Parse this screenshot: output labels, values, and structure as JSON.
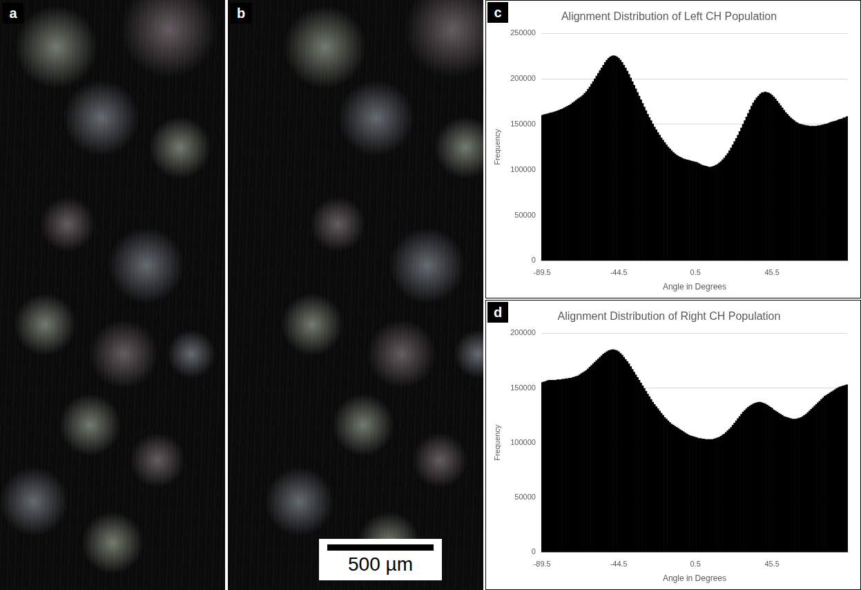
{
  "images": [
    {
      "panel": "a"
    },
    {
      "panel": "b",
      "scale_bar": "500 µm"
    }
  ],
  "chart_data": [
    {
      "type": "bar",
      "panel": "c",
      "title": "Alignment Distribution of Left CH Population",
      "x_label": "Angle in Degrees",
      "y_label": "Frequency",
      "color": "#000000",
      "grid": true,
      "ylim": [
        0,
        250000
      ],
      "yticks": [
        0,
        50000,
        100000,
        150000,
        200000,
        250000
      ],
      "categories": [
        "-89.5",
        null,
        null,
        null,
        null,
        null,
        null,
        null,
        null,
        null,
        null,
        null,
        null,
        null,
        null,
        null,
        null,
        null,
        null,
        null,
        null,
        null,
        null,
        null,
        null,
        null,
        null,
        null,
        null,
        null,
        null,
        null,
        null,
        null,
        null,
        null,
        null,
        null,
        null,
        null,
        null,
        null,
        null,
        null,
        null,
        "-44.5",
        null,
        null,
        null,
        null,
        null,
        null,
        null,
        null,
        null,
        null,
        null,
        null,
        null,
        null,
        null,
        null,
        null,
        null,
        null,
        null,
        null,
        null,
        null,
        null,
        null,
        null,
        null,
        null,
        null,
        null,
        null,
        null,
        null,
        null,
        null,
        null,
        null,
        null,
        null,
        null,
        null,
        null,
        null,
        null,
        "0.5",
        null,
        null,
        null,
        null,
        null,
        null,
        null,
        null,
        null,
        null,
        null,
        null,
        null,
        null,
        null,
        null,
        null,
        null,
        null,
        null,
        null,
        null,
        null,
        null,
        null,
        null,
        null,
        null,
        null,
        null,
        null,
        null,
        null,
        null,
        null,
        null,
        null,
        null,
        null,
        null,
        null,
        null,
        null,
        null,
        "45.5",
        null,
        null,
        null,
        null,
        null,
        null,
        null,
        null,
        null,
        null,
        null,
        null,
        null,
        null,
        null,
        null,
        null,
        null,
        null,
        null,
        null,
        null,
        null,
        null,
        null,
        null,
        null,
        null,
        null,
        null,
        null,
        null,
        null,
        null,
        null,
        null,
        null,
        null,
        null,
        null,
        null,
        null,
        null,
        null
      ],
      "values": [
        160000,
        160500,
        161000,
        161500,
        162000,
        162500,
        163000,
        163500,
        164000,
        164800,
        165500,
        166300,
        167000,
        168000,
        169000,
        170000,
        171000,
        172000,
        173500,
        175000,
        176500,
        178000,
        179000,
        180500,
        182000,
        184000,
        186000,
        188500,
        191000,
        194000,
        197000,
        200000,
        203000,
        206000,
        209000,
        212000,
        215000,
        218000,
        220500,
        222500,
        224000,
        225000,
        225500,
        225000,
        224000,
        222500,
        220500,
        218000,
        215000,
        212000,
        208500,
        205000,
        201000,
        197000,
        193000,
        189000,
        185000,
        181000,
        177000,
        173000,
        169000,
        165000,
        161000,
        157500,
        154000,
        150500,
        147000,
        144000,
        141000,
        138000,
        135000,
        132500,
        130000,
        127500,
        125000,
        123000,
        121000,
        119000,
        117500,
        116000,
        115000,
        114000,
        113000,
        112000,
        111500,
        111000,
        110500,
        110000,
        109500,
        109000,
        108500,
        108000,
        107000,
        106000,
        105000,
        104500,
        104000,
        103500,
        103000,
        103000,
        103500,
        104000,
        105000,
        106000,
        107500,
        109000,
        111000,
        113000,
        115500,
        118000,
        121000,
        124000,
        127500,
        131000,
        134500,
        138000,
        142000,
        146000,
        150000,
        154000,
        158000,
        162000,
        166000,
        170000,
        173500,
        176500,
        179000,
        181000,
        183000,
        184500,
        185000,
        185500,
        185000,
        184500,
        183500,
        182000,
        180000,
        178000,
        175500,
        173000,
        170500,
        168000,
        165500,
        163000,
        161000,
        159000,
        157000,
        155500,
        154000,
        152500,
        151500,
        150500,
        150000,
        149500,
        149000,
        148500,
        148500,
        148000,
        148000,
        148000,
        148000,
        148000,
        148500,
        148500,
        149000,
        149500,
        150000,
        150500,
        151000,
        152000,
        152500,
        153000,
        153500,
        154000,
        155000,
        155500,
        156000,
        157000,
        157500,
        158500
      ]
    },
    {
      "type": "bar",
      "panel": "d",
      "title": "Alignment Distribution of Right CH Population",
      "x_label": "Angle in Degrees",
      "y_label": "Frequency",
      "color": "#000000",
      "grid": true,
      "ylim": [
        0,
        200000
      ],
      "yticks": [
        0,
        50000,
        100000,
        150000,
        200000
      ],
      "categories": [
        "-89.5",
        null,
        null,
        null,
        null,
        null,
        null,
        null,
        null,
        null,
        null,
        null,
        null,
        null,
        null,
        null,
        null,
        null,
        null,
        null,
        null,
        null,
        null,
        null,
        null,
        null,
        null,
        null,
        null,
        null,
        null,
        null,
        null,
        null,
        null,
        null,
        null,
        null,
        null,
        null,
        null,
        null,
        null,
        null,
        null,
        "-44.5",
        null,
        null,
        null,
        null,
        null,
        null,
        null,
        null,
        null,
        null,
        null,
        null,
        null,
        null,
        null,
        null,
        null,
        null,
        null,
        null,
        null,
        null,
        null,
        null,
        null,
        null,
        null,
        null,
        null,
        null,
        null,
        null,
        null,
        null,
        null,
        null,
        null,
        null,
        null,
        null,
        null,
        null,
        null,
        null,
        "0.5",
        null,
        null,
        null,
        null,
        null,
        null,
        null,
        null,
        null,
        null,
        null,
        null,
        null,
        null,
        null,
        null,
        null,
        null,
        null,
        null,
        null,
        null,
        null,
        null,
        null,
        null,
        null,
        null,
        null,
        null,
        null,
        null,
        null,
        null,
        null,
        null,
        null,
        null,
        null,
        null,
        null,
        null,
        null,
        null,
        "45.5",
        null,
        null,
        null,
        null,
        null,
        null,
        null,
        null,
        null,
        null,
        null,
        null,
        null,
        null,
        null,
        null,
        null,
        null,
        null,
        null,
        null,
        null,
        null,
        null,
        null,
        null,
        null,
        null,
        null,
        null,
        null,
        null,
        null,
        null,
        null,
        null,
        null,
        null,
        null,
        null,
        null,
        null,
        null,
        null
      ],
      "values": [
        155000,
        155500,
        156000,
        156500,
        157000,
        157000,
        157000,
        157000,
        157000,
        157500,
        157500,
        157500,
        158000,
        158000,
        158500,
        158500,
        159000,
        159000,
        159500,
        160000,
        160500,
        161000,
        162000,
        163000,
        164000,
        165000,
        166000,
        167500,
        169000,
        170500,
        172000,
        173500,
        175000,
        176500,
        178000,
        179500,
        181000,
        182000,
        183000,
        184000,
        184500,
        185000,
        185000,
        184500,
        184000,
        183000,
        181500,
        180000,
        178000,
        176000,
        174000,
        172000,
        169500,
        167000,
        164500,
        162000,
        159500,
        157000,
        154500,
        152000,
        149500,
        147000,
        144500,
        142000,
        139500,
        137000,
        135000,
        133000,
        131000,
        129000,
        127000,
        125000,
        123000,
        121500,
        120000,
        118500,
        117000,
        116000,
        115000,
        114000,
        113000,
        112000,
        111000,
        110000,
        109000,
        108000,
        107000,
        106500,
        106000,
        105500,
        105000,
        104500,
        104000,
        104000,
        103500,
        103500,
        103000,
        103000,
        103000,
        103000,
        103000,
        103500,
        104000,
        104500,
        105000,
        106000,
        107000,
        108000,
        109500,
        111000,
        112500,
        114000,
        116000,
        118000,
        120000,
        122000,
        124000,
        126000,
        128000,
        129500,
        131000,
        132500,
        133500,
        134500,
        135500,
        136000,
        136500,
        137000,
        137000,
        136500,
        136000,
        135500,
        134500,
        133500,
        132500,
        131500,
        130000,
        129000,
        128000,
        127000,
        126000,
        125000,
        124000,
        123500,
        123000,
        122500,
        122000,
        121500,
        121500,
        121500,
        122000,
        122500,
        123000,
        124000,
        125000,
        126000,
        127500,
        129000,
        130500,
        132000,
        133500,
        135000,
        136500,
        138000,
        139500,
        141000,
        142500,
        143500,
        144500,
        145500,
        146500,
        147500,
        148500,
        149500,
        150500,
        151000,
        151500,
        152000,
        152500,
        153000
      ]
    }
  ]
}
